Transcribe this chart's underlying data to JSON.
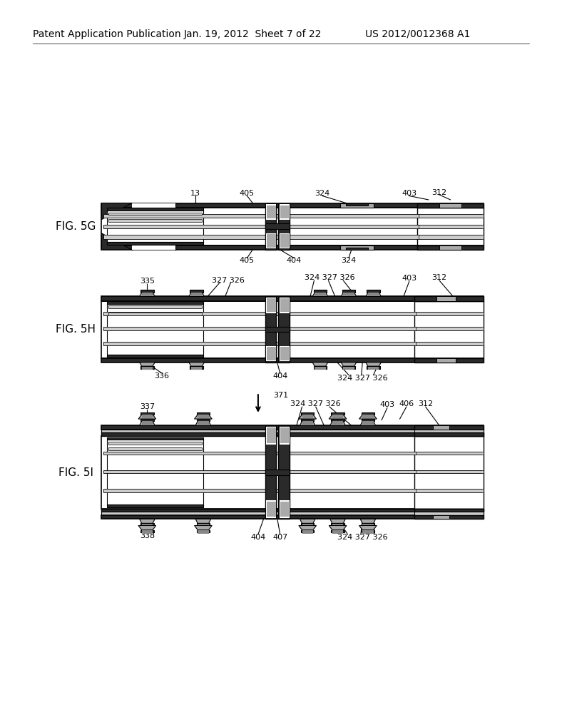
{
  "bg_color": "#ffffff",
  "header_left": "Patent Application Publication",
  "header_mid": "Jan. 19, 2012  Sheet 7 of 22",
  "header_right": "US 2012/0012368 A1",
  "fig5g_label": "FIG. 5G",
  "fig5h_label": "FIG. 5H",
  "fig5i_label": "FIG. 5I",
  "line_color": "#000000",
  "dark_fill": "#2a2a2a",
  "gray_fill": "#aaaaaa",
  "hatch_fill": "#888888",
  "light_gray": "#cccccc",
  "white_fill": "#ffffff"
}
